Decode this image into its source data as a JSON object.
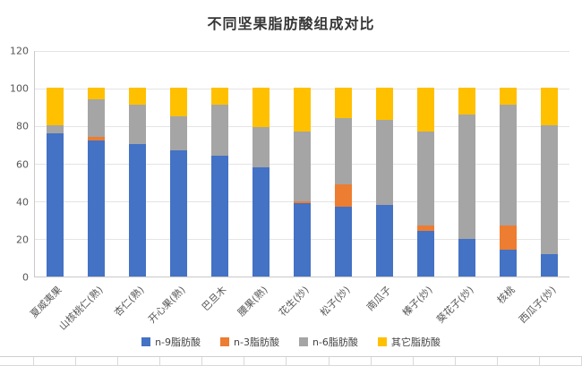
{
  "chart_data": {
    "type": "bar",
    "stacked": true,
    "title": "不同坚果脂肪酸组成对比",
    "categories": [
      "夏威夷果",
      "山核桃仁(熟)",
      "杏仁(熟)",
      "开心果(熟)",
      "巴旦木",
      "腰果(熟)",
      "花生(炒)",
      "松子(炒)",
      "南瓜子",
      "榛子(炒)",
      "葵花子(炒)",
      "核桃",
      "西瓜子(炒)"
    ],
    "series": [
      {
        "name": "n-9脂肪酸",
        "color": "#4472C4",
        "values": [
          76,
          72,
          70,
          67,
          64,
          58,
          39,
          37,
          38,
          24,
          20,
          14,
          12
        ]
      },
      {
        "name": "n-3脂肪酸",
        "color": "#ED7D31",
        "values": [
          0,
          2,
          0,
          0,
          0,
          0,
          1,
          12,
          0,
          3,
          0,
          13,
          0
        ]
      },
      {
        "name": "n-6脂肪酸",
        "color": "#A5A5A5",
        "values": [
          4,
          20,
          21,
          18,
          27,
          21,
          37,
          35,
          45,
          50,
          66,
          64,
          68
        ]
      },
      {
        "name": "其它脂肪酸",
        "color": "#FFC000",
        "values": [
          20,
          6,
          9,
          15,
          9,
          21,
          23,
          16,
          17,
          23,
          14,
          9,
          20
        ]
      }
    ],
    "ylim": [
      0,
      120
    ],
    "yticks": [
      0,
      20,
      40,
      60,
      80,
      100,
      120
    ],
    "xlabel": "",
    "ylabel": "",
    "grid": true,
    "legend_position": "bottom"
  }
}
